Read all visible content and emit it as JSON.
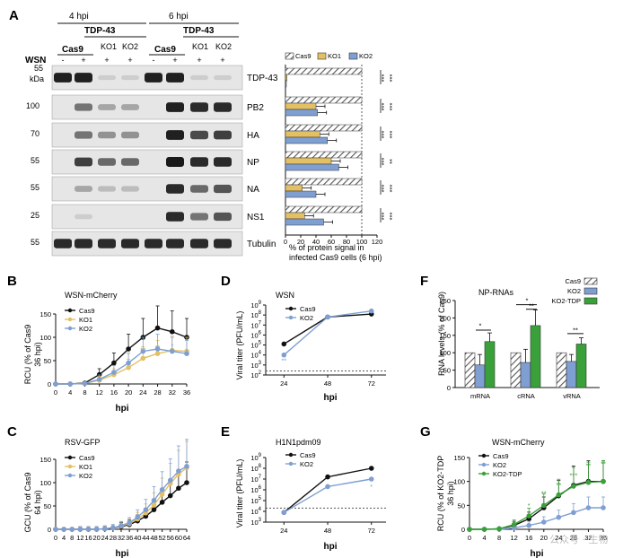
{
  "palette": {
    "cas9": "#111111",
    "ko1": "#e3c064",
    "ko2": "#7f9fd2",
    "ko2_tdp": "#3aa13a",
    "hatch": "#555555",
    "blot_bg": "#e6e6e6",
    "band": "#151515"
  },
  "panelA": {
    "label": "A",
    "time_4": "4 hpi",
    "time_6": "6 hpi",
    "wsn": "WSN",
    "kda": "kDa",
    "cas9": "Cas9",
    "tdp43": "TDP-43",
    "ko1": "KO1",
    "ko2": "KO2",
    "signs": [
      "-",
      "+",
      "+",
      "+",
      "-",
      "+",
      "+",
      "+"
    ],
    "blots": [
      {
        "name": "TDP-43",
        "mw": "55",
        "bands": [
          0.95,
          0.95,
          0.05,
          0.05,
          0.95,
          0.95,
          0.05,
          0.05
        ]
      },
      {
        "name": "PB2",
        "mw": "100",
        "bands": [
          0.0,
          0.55,
          0.3,
          0.3,
          0.0,
          0.95,
          0.9,
          0.9
        ]
      },
      {
        "name": "HA",
        "mw": "70",
        "bands": [
          0.0,
          0.55,
          0.4,
          0.4,
          0.0,
          0.95,
          0.75,
          0.8
        ]
      },
      {
        "name": "NP",
        "mw": "55",
        "bands": [
          0.0,
          0.8,
          0.6,
          0.6,
          0.0,
          0.98,
          0.9,
          0.9
        ]
      },
      {
        "name": "NA",
        "mw": "55",
        "bands": [
          0.0,
          0.3,
          0.2,
          0.2,
          0.0,
          0.9,
          0.6,
          0.7
        ]
      },
      {
        "name": "NS1",
        "mw": "25",
        "bands": [
          0.0,
          0.1,
          0.0,
          0.0,
          0.0,
          0.9,
          0.55,
          0.7
        ]
      },
      {
        "name": "Tubulin",
        "mw": "55",
        "bands": [
          0.9,
          0.9,
          0.9,
          0.9,
          0.9,
          0.9,
          0.9,
          0.9
        ]
      }
    ],
    "bar_chart": {
      "legend": [
        "Cas9",
        "KO1",
        "KO2"
      ],
      "xlabel_1": "% of protein signal in",
      "xlabel_2": "infected Cas9 cells (6 hpi)",
      "ticks": [
        "0",
        "20",
        "40",
        "60",
        "80",
        "100",
        "120"
      ],
      "xlim": [
        0,
        120
      ],
      "rows": [
        {
          "name": "TDP-43",
          "cas9": 100,
          "ko1": 2,
          "ko2": 1,
          "sig_ko1": "***",
          "sig_ko2": "***"
        },
        {
          "name": "PB2",
          "cas9": 100,
          "ko1": 40,
          "ko2": 42,
          "sig_ko1": "***",
          "sig_ko2": "***"
        },
        {
          "name": "HA",
          "cas9": 100,
          "ko1": 45,
          "ko2": 55,
          "sig_ko1": "***",
          "sig_ko2": "***"
        },
        {
          "name": "NP",
          "cas9": 100,
          "ko1": 60,
          "ko2": 70,
          "sig_ko1": "***",
          "sig_ko2": "**"
        },
        {
          "name": "NA",
          "cas9": 100,
          "ko1": 22,
          "ko2": 40,
          "sig_ko1": "***",
          "sig_ko2": "***"
        },
        {
          "name": "NS1",
          "cas9": 100,
          "ko1": 25,
          "ko2": 50,
          "sig_ko1": "***",
          "sig_ko2": "***"
        }
      ]
    }
  },
  "chart_data": [
    {
      "panel": "B",
      "type": "line",
      "title": "WSN-mCherry",
      "xlabel": "hpi",
      "ylabel_1": "RCU (% of Cas9",
      "ylabel_2": "36 hpi)",
      "x": [
        0,
        4,
        8,
        12,
        16,
        20,
        24,
        28,
        32,
        36
      ],
      "ylim": [
        0,
        150
      ],
      "yticks": [
        0,
        50,
        100,
        150
      ],
      "series": [
        {
          "name": "Cas9",
          "values": [
            0,
            0,
            2,
            20,
            45,
            75,
            100,
            120,
            112,
            100
          ]
        },
        {
          "name": "KO1",
          "values": [
            0,
            0,
            1,
            8,
            20,
            35,
            55,
            65,
            72,
            70
          ]
        },
        {
          "name": "KO2",
          "values": [
            0,
            0,
            1,
            10,
            25,
            45,
            70,
            75,
            70,
            65
          ]
        }
      ],
      "annotations": [
        "*",
        "**",
        "*",
        "**",
        "*",
        "*"
      ]
    },
    {
      "panel": "C",
      "type": "line",
      "title": "RSV-GFP",
      "xlabel": "hpi",
      "ylabel_1": "GCU (% of Cas9",
      "ylabel_2": "64 hpi)",
      "x": [
        0,
        4,
        8,
        12,
        16,
        20,
        24,
        28,
        32,
        36,
        40,
        44,
        48,
        52,
        56,
        60,
        64
      ],
      "ylim": [
        0,
        150
      ],
      "yticks": [
        0,
        50,
        100,
        150
      ],
      "series": [
        {
          "name": "Cas9",
          "values": [
            0,
            0,
            0,
            0,
            0,
            0,
            1,
            3,
            6,
            10,
            18,
            28,
            42,
            58,
            72,
            88,
            100
          ]
        },
        {
          "name": "KO1",
          "values": [
            0,
            0,
            0,
            0,
            0,
            0,
            1,
            3,
            7,
            12,
            22,
            35,
            52,
            75,
            98,
            118,
            132
          ]
        },
        {
          "name": "KO2",
          "values": [
            0,
            0,
            0,
            0,
            0,
            0,
            1,
            3,
            8,
            14,
            26,
            42,
            62,
            85,
            105,
            125,
            135
          ]
        }
      ]
    },
    {
      "panel": "D",
      "type": "line",
      "title": "WSN",
      "xlabel": "hpi",
      "ylabel": "Viral titer (PFU/mL)",
      "x": [
        24,
        48,
        72
      ],
      "yscale": "log",
      "ylim_exp": [
        2,
        9
      ],
      "detection_limit_exp": 2.4,
      "series": [
        {
          "name": "Cas9",
          "values_log10": [
            5.1,
            7.8,
            8.1
          ]
        },
        {
          "name": "KO2",
          "values_log10": [
            4.0,
            7.8,
            8.4
          ]
        }
      ],
      "annotations": [
        "**"
      ]
    },
    {
      "panel": "E",
      "type": "line",
      "title": "H1N1pdm09",
      "xlabel": "hpi",
      "ylabel": "Viral titer (PFU/mL)",
      "x": [
        24,
        48,
        72
      ],
      "yscale": "log",
      "ylim_exp": [
        3,
        9
      ],
      "detection_limit_exp": 4.3,
      "series": [
        {
          "name": "Cas9",
          "values_log10": [
            3.9,
            7.2,
            8.0
          ]
        },
        {
          "name": "KO2",
          "values_log10": [
            3.9,
            6.3,
            7.0
          ]
        }
      ],
      "annotations": [
        "*"
      ]
    },
    {
      "panel": "F",
      "type": "bar",
      "title": "NP-RNAs",
      "ylabel": "RNA levels (% of Cas9)",
      "categories": [
        "mRNA",
        "cRNA",
        "vRNA"
      ],
      "ylim": [
        0,
        250
      ],
      "yticks": [
        0,
        50,
        100,
        150,
        200,
        250
      ],
      "legend": "top-right",
      "series": [
        {
          "name": "Cas9",
          "values": [
            100,
            100,
            100
          ],
          "err": [
            0,
            0,
            0
          ]
        },
        {
          "name": "KO2",
          "values": [
            65,
            72,
            75
          ],
          "err": [
            30,
            38,
            20
          ]
        },
        {
          "name": "KO2-TDP",
          "values": [
            132,
            178,
            125
          ],
          "err": [
            25,
            45,
            18
          ]
        }
      ],
      "annotations": [
        "*",
        "*",
        "**",
        "**"
      ]
    },
    {
      "panel": "G",
      "type": "line",
      "title": "WSN-mCherry",
      "xlabel": "hpi",
      "ylabel_1": "RCU (% of KO2-TDP",
      "ylabel_2": "36 hpi)",
      "x": [
        0,
        4,
        8,
        12,
        16,
        20,
        24,
        28,
        32,
        36
      ],
      "ylim": [
        0,
        150
      ],
      "yticks": [
        0,
        50,
        100,
        150
      ],
      "series": [
        {
          "name": "Cas9",
          "values": [
            0,
            0,
            1,
            8,
            22,
            45,
            70,
            92,
            100,
            100
          ]
        },
        {
          "name": "KO2",
          "values": [
            0,
            0,
            0,
            3,
            8,
            15,
            25,
            35,
            45,
            45
          ]
        },
        {
          "name": "KO2-TDP",
          "values": [
            0,
            0,
            1,
            10,
            28,
            50,
            72,
            90,
            98,
            100
          ]
        }
      ],
      "annotations": [
        "*",
        "**",
        "**",
        "***",
        "**",
        "**"
      ],
      "watermark": "公众号 · 生物"
    }
  ],
  "labels": {
    "b": "B",
    "c": "C",
    "d": "D",
    "e": "E",
    "f": "F",
    "g": "G"
  }
}
